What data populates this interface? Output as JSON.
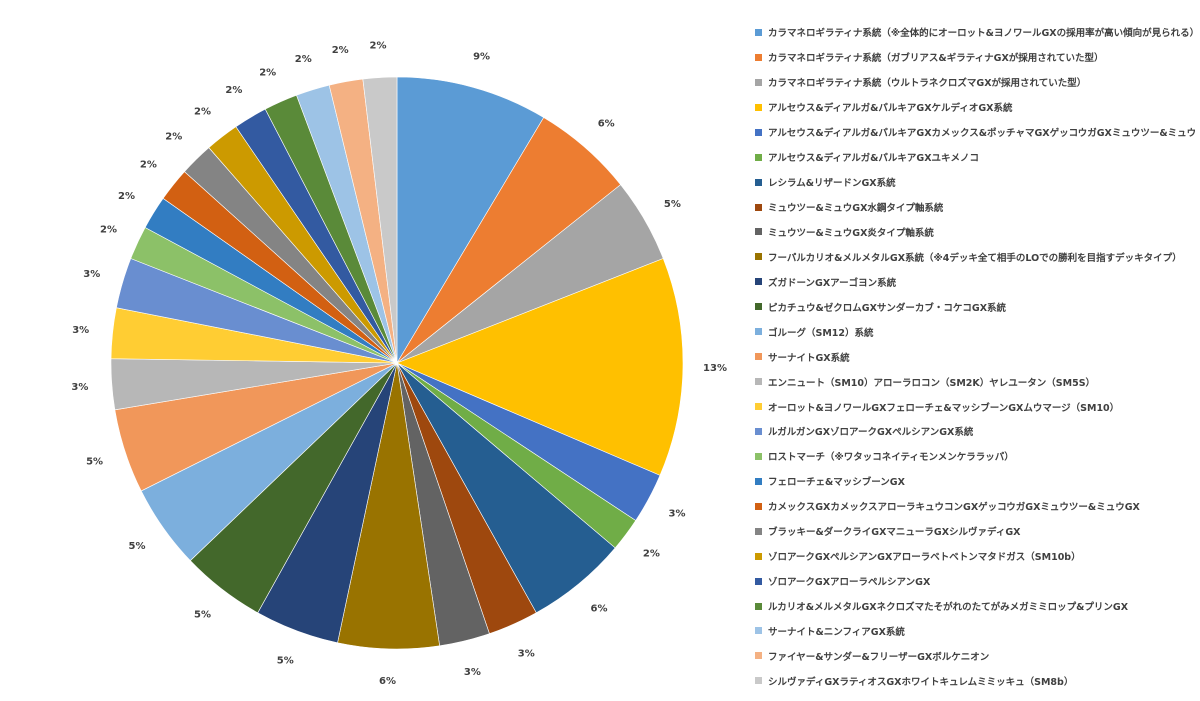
{
  "chart_data": {
    "type": "pie",
    "title": "",
    "legend_placement": "right",
    "labels": [
      "カラマネロギラティナ系統（※全体的にオーロット&ヨノワールGXの採用率が高い傾向が見られる）",
      "カラマネロギラティナ系統（ガブリアス&ギラティナGXが採用されていた型）",
      "カラマネロギラティナ系統（ウルトラネクロズマGXが採用されていた型）",
      "アルセウス&ディアルガ&パルキアGXケルディオGX系統",
      "アルセウス&ディアルガ&パルキアGXカメックス&ポッチャマGXゲッコウガGXミュウツー&ミュウGX",
      "アルセウス&ディアルガ&パルキアGXユキメノコ",
      "レシラム&リザードンGX系統",
      "ミュウツー&ミュウGX水鋼タイプ軸系統",
      "ミュウツー&ミュウGX炎タイプ軸系統",
      "フーパルカリオ&メルメタルGX系統（※4デッキ全て相手のLOでの勝利を目指すデッキタイプ）",
      "ズガドーンGXアーゴヨン系統",
      "ピカチュウ&ゼクロムGXサンダーカブ・コケコGX系統",
      "ゴルーグ（SM12）系統",
      "サーナイトGX系統",
      "エンニュート（SM10）アローラロコン（SM2K）ヤレユータン（SM5S）",
      "オーロット&ヨノワールGXフェローチェ&マッシブーンGXムウマージ（SM10）",
      "ルガルガンGXゾロアークGXペルシアンGX系統",
      "ロストマーチ（※ワタッコネイティモンメンケララッパ）",
      "フェローチェ&マッシブーンGX",
      "カメックスGXカメックスアローラキュウコンGXゲッコウガGXミュウツー&ミュウGX",
      "ブラッキー&ダークライGXマニューラGXシルヴァディGX",
      "ゾロアークGXペルシアンGXアローラベトベトンマタドガス（SM10b）",
      "ゾロアークGXアローラペルシアンGX",
      "ルカリオ&メルメタルGXネクロズマたそがれのたてがみメガミミロップ&プリンGX",
      "サーナイト&ニンフィアGX系統",
      "ファイヤー&サンダー&フリーザーGXボルケニオン",
      "シルヴァディGXラティオスGXホワイトキュレムミミッキュ（SM8b）"
    ],
    "values": [
      9,
      6,
      5,
      13,
      3,
      2,
      6,
      3,
      3,
      6,
      5,
      5,
      5,
      5,
      3,
      3,
      3,
      2,
      2,
      2,
      2,
      2,
      2,
      2,
      2,
      2,
      2
    ],
    "data_labels": [
      "9%",
      "6%",
      "5%",
      "13%",
      "3%",
      "2%",
      "6%",
      "3%",
      "3%",
      "6%",
      "5%",
      "5%",
      "5%",
      "5%",
      "3%",
      "3%",
      "3%",
      "2%",
      "2%",
      "2%",
      "2%",
      "2%",
      "2%",
      "2%",
      "2%",
      "2%",
      "2%"
    ],
    "colors": [
      "#5B9BD5",
      "#ED7D31",
      "#A5A5A5",
      "#FFC000",
      "#4472C4",
      "#70AD47",
      "#255E91",
      "#9E480E",
      "#636363",
      "#997300",
      "#264478",
      "#43682B",
      "#7CAFDD",
      "#F1975A",
      "#B7B7B7",
      "#FFCD33",
      "#698ED0",
      "#8CC168",
      "#327DC2",
      "#D26012",
      "#848484",
      "#CC9A00",
      "#335AA1",
      "#5A8A39",
      "#9DC3E6",
      "#F4B183",
      "#C9C9C9"
    ]
  }
}
